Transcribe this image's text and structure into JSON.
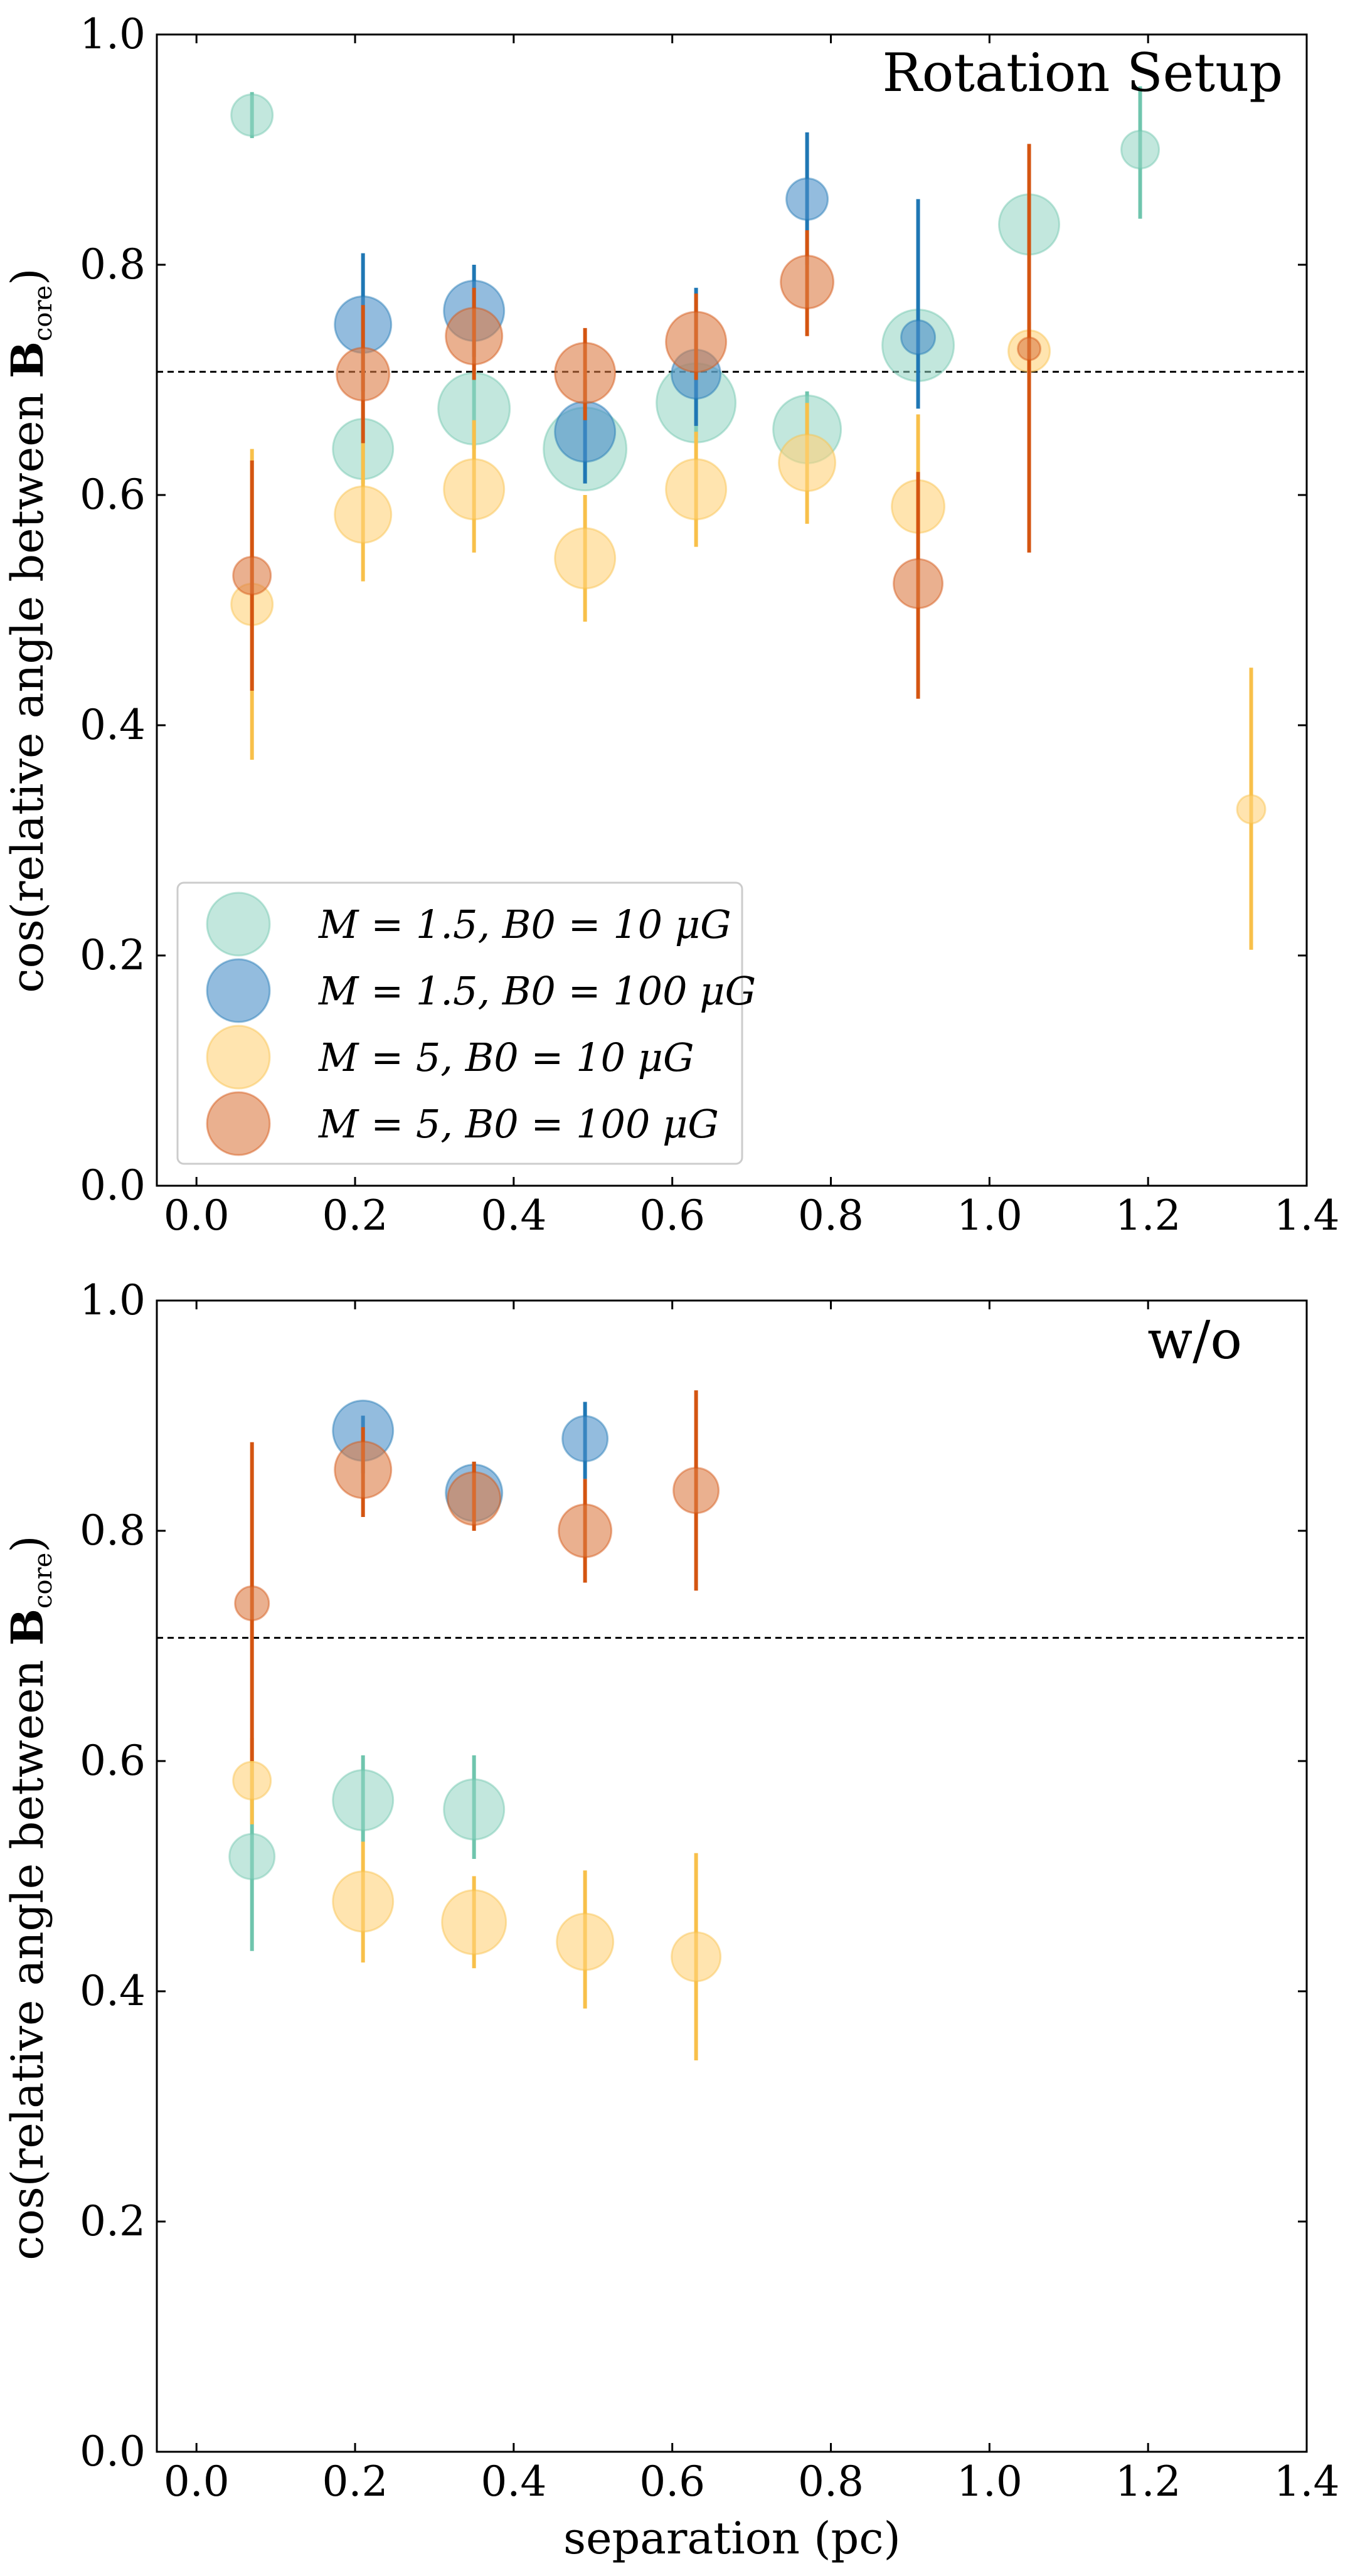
{
  "colors": {
    "teal": "#8fd3c1",
    "teal_err": "#6fc5ad",
    "blue": "#4b8fc8",
    "blue_err": "#1f77b4",
    "yellow": "#ffd27a",
    "yellow_err": "#f8c04a",
    "orange": "#dc7b45",
    "orange_err": "#d45511",
    "ref_line": "#000000"
  },
  "chart_data": [
    {
      "type": "scatter",
      "title": "Rotation Setup",
      "xlabel": "",
      "ylabel": "cos(relative angle between B_core)",
      "xlim": [
        -0.05,
        1.4
      ],
      "ylim": [
        0,
        1
      ],
      "xticks": [
        "0.0",
        "0.2",
        "0.4",
        "0.6",
        "0.8",
        "1.0",
        "1.2",
        "1.4"
      ],
      "yticks": [
        "0.0",
        "0.2",
        "0.4",
        "0.6",
        "0.8",
        "1.0"
      ],
      "reference_line_y": 0.707,
      "legend_position": "lower-left",
      "series": [
        {
          "name": "M = 1.5, B0 = 10 μG",
          "color_key": "teal",
          "points": [
            {
              "x": 0.07,
              "y": 0.93,
              "lo": 0.91,
              "hi": 0.95,
              "r": 1.1
            },
            {
              "x": 0.21,
              "y": 0.64,
              "lo": 0.61,
              "hi": 0.68,
              "r": 1.6
            },
            {
              "x": 0.35,
              "y": 0.675,
              "lo": 0.64,
              "hi": 0.71,
              "r": 1.9
            },
            {
              "x": 0.49,
              "y": 0.64,
              "lo": 0.61,
              "hi": 0.67,
              "r": 2.2
            },
            {
              "x": 0.63,
              "y": 0.68,
              "lo": 0.65,
              "hi": 0.71,
              "r": 2.1
            },
            {
              "x": 0.77,
              "y": 0.657,
              "lo": 0.63,
              "hi": 0.69,
              "r": 1.8
            },
            {
              "x": 0.91,
              "y": 0.73,
              "lo": 0.7,
              "hi": 0.76,
              "r": 1.9
            },
            {
              "x": 1.05,
              "y": 0.835,
              "lo": 0.81,
              "hi": 0.86,
              "r": 1.6
            },
            {
              "x": 1.19,
              "y": 0.9,
              "lo": 0.84,
              "hi": 0.955,
              "r": 1.0
            }
          ]
        },
        {
          "name": "M = 1.5, B0 = 100 μG",
          "color_key": "blue",
          "points": [
            {
              "x": 0.21,
              "y": 0.748,
              "lo": 0.69,
              "hi": 0.81,
              "r": 1.5
            },
            {
              "x": 0.35,
              "y": 0.76,
              "lo": 0.72,
              "hi": 0.8,
              "r": 1.6
            },
            {
              "x": 0.49,
              "y": 0.655,
              "lo": 0.61,
              "hi": 0.7,
              "r": 1.6
            },
            {
              "x": 0.63,
              "y": 0.705,
              "lo": 0.66,
              "hi": 0.78,
              "r": 1.3
            },
            {
              "x": 0.77,
              "y": 0.857,
              "lo": 0.8,
              "hi": 0.915,
              "r": 1.1
            },
            {
              "x": 0.91,
              "y": 0.737,
              "lo": 0.675,
              "hi": 0.857,
              "r": 0.9
            }
          ]
        },
        {
          "name": "M = 5, B0 = 10 μG",
          "color_key": "yellow",
          "points": [
            {
              "x": 0.07,
              "y": 0.505,
              "lo": 0.37,
              "hi": 0.64,
              "r": 1.1
            },
            {
              "x": 0.21,
              "y": 0.583,
              "lo": 0.525,
              "hi": 0.645,
              "r": 1.5
            },
            {
              "x": 0.35,
              "y": 0.605,
              "lo": 0.55,
              "hi": 0.665,
              "r": 1.6
            },
            {
              "x": 0.49,
              "y": 0.545,
              "lo": 0.49,
              "hi": 0.6,
              "r": 1.6
            },
            {
              "x": 0.63,
              "y": 0.605,
              "lo": 0.555,
              "hi": 0.655,
              "r": 1.6
            },
            {
              "x": 0.77,
              "y": 0.628,
              "lo": 0.575,
              "hi": 0.68,
              "r": 1.5
            },
            {
              "x": 0.91,
              "y": 0.59,
              "lo": 0.52,
              "hi": 0.67,
              "r": 1.4
            },
            {
              "x": 1.05,
              "y": 0.725,
              "lo": 0.7,
              "hi": 0.75,
              "r": 1.1
            },
            {
              "x": 1.33,
              "y": 0.327,
              "lo": 0.205,
              "hi": 0.45,
              "r": 0.75
            }
          ]
        },
        {
          "name": "M = 5, B0 = 100 μG",
          "color_key": "orange",
          "points": [
            {
              "x": 0.07,
              "y": 0.53,
              "lo": 0.43,
              "hi": 0.63,
              "r": 1.0
            },
            {
              "x": 0.21,
              "y": 0.705,
              "lo": 0.645,
              "hi": 0.765,
              "r": 1.4
            },
            {
              "x": 0.35,
              "y": 0.738,
              "lo": 0.7,
              "hi": 0.78,
              "r": 1.5
            },
            {
              "x": 0.49,
              "y": 0.706,
              "lo": 0.665,
              "hi": 0.745,
              "r": 1.6
            },
            {
              "x": 0.63,
              "y": 0.733,
              "lo": 0.7,
              "hi": 0.775,
              "r": 1.6
            },
            {
              "x": 0.77,
              "y": 0.785,
              "lo": 0.738,
              "hi": 0.83,
              "r": 1.4
            },
            {
              "x": 0.91,
              "y": 0.523,
              "lo": 0.423,
              "hi": 0.62,
              "r": 1.3
            },
            {
              "x": 1.05,
              "y": 0.727,
              "lo": 0.55,
              "hi": 0.905,
              "r": 0.6
            }
          ]
        }
      ]
    },
    {
      "type": "scatter",
      "title": "w/o",
      "xlabel": "separation (pc)",
      "ylabel": "cos(relative angle between B_core)",
      "xlim": [
        -0.05,
        1.4
      ],
      "ylim": [
        0,
        1
      ],
      "xticks": [
        "0.0",
        "0.2",
        "0.4",
        "0.6",
        "0.8",
        "1.0",
        "1.2",
        "1.4"
      ],
      "yticks": [
        "0.0",
        "0.2",
        "0.4",
        "0.6",
        "0.8",
        "1.0"
      ],
      "reference_line_y": 0.707,
      "series": [
        {
          "name": "M = 1.5, B0 = 10 μG",
          "color_key": "teal",
          "points": [
            {
              "x": 0.07,
              "y": 0.517,
              "lo": 0.435,
              "hi": 0.6,
              "r": 1.2
            },
            {
              "x": 0.21,
              "y": 0.566,
              "lo": 0.53,
              "hi": 0.605,
              "r": 1.6
            },
            {
              "x": 0.35,
              "y": 0.558,
              "lo": 0.515,
              "hi": 0.605,
              "r": 1.6
            }
          ]
        },
        {
          "name": "M = 1.5, B0 = 100 μG",
          "color_key": "blue",
          "points": [
            {
              "x": 0.21,
              "y": 0.887,
              "lo": 0.85,
              "hi": 0.9,
              "r": 1.6
            },
            {
              "x": 0.35,
              "y": 0.833,
              "lo": 0.81,
              "hi": 0.86,
              "r": 1.5
            },
            {
              "x": 0.49,
              "y": 0.88,
              "lo": 0.845,
              "hi": 0.912,
              "r": 1.2
            }
          ]
        },
        {
          "name": "M = 5, B0 = 10 μG",
          "color_key": "yellow",
          "points": [
            {
              "x": 0.07,
              "y": 0.583,
              "lo": 0.545,
              "hi": 0.62,
              "r": 1.0
            },
            {
              "x": 0.21,
              "y": 0.478,
              "lo": 0.425,
              "hi": 0.53,
              "r": 1.6
            },
            {
              "x": 0.35,
              "y": 0.46,
              "lo": 0.42,
              "hi": 0.5,
              "r": 1.7
            },
            {
              "x": 0.49,
              "y": 0.443,
              "lo": 0.385,
              "hi": 0.505,
              "r": 1.5
            },
            {
              "x": 0.63,
              "y": 0.43,
              "lo": 0.34,
              "hi": 0.52,
              "r": 1.3
            }
          ]
        },
        {
          "name": "M = 5, B0 = 100 μG",
          "color_key": "orange",
          "points": [
            {
              "x": 0.07,
              "y": 0.737,
              "lo": 0.6,
              "hi": 0.877,
              "r": 0.9
            },
            {
              "x": 0.21,
              "y": 0.853,
              "lo": 0.812,
              "hi": 0.89,
              "r": 1.5
            },
            {
              "x": 0.35,
              "y": 0.828,
              "lo": 0.8,
              "hi": 0.86,
              "r": 1.4
            },
            {
              "x": 0.49,
              "y": 0.8,
              "lo": 0.755,
              "hi": 0.845,
              "r": 1.4
            },
            {
              "x": 0.63,
              "y": 0.835,
              "lo": 0.748,
              "hi": 0.922,
              "r": 1.2
            }
          ]
        }
      ]
    }
  ]
}
